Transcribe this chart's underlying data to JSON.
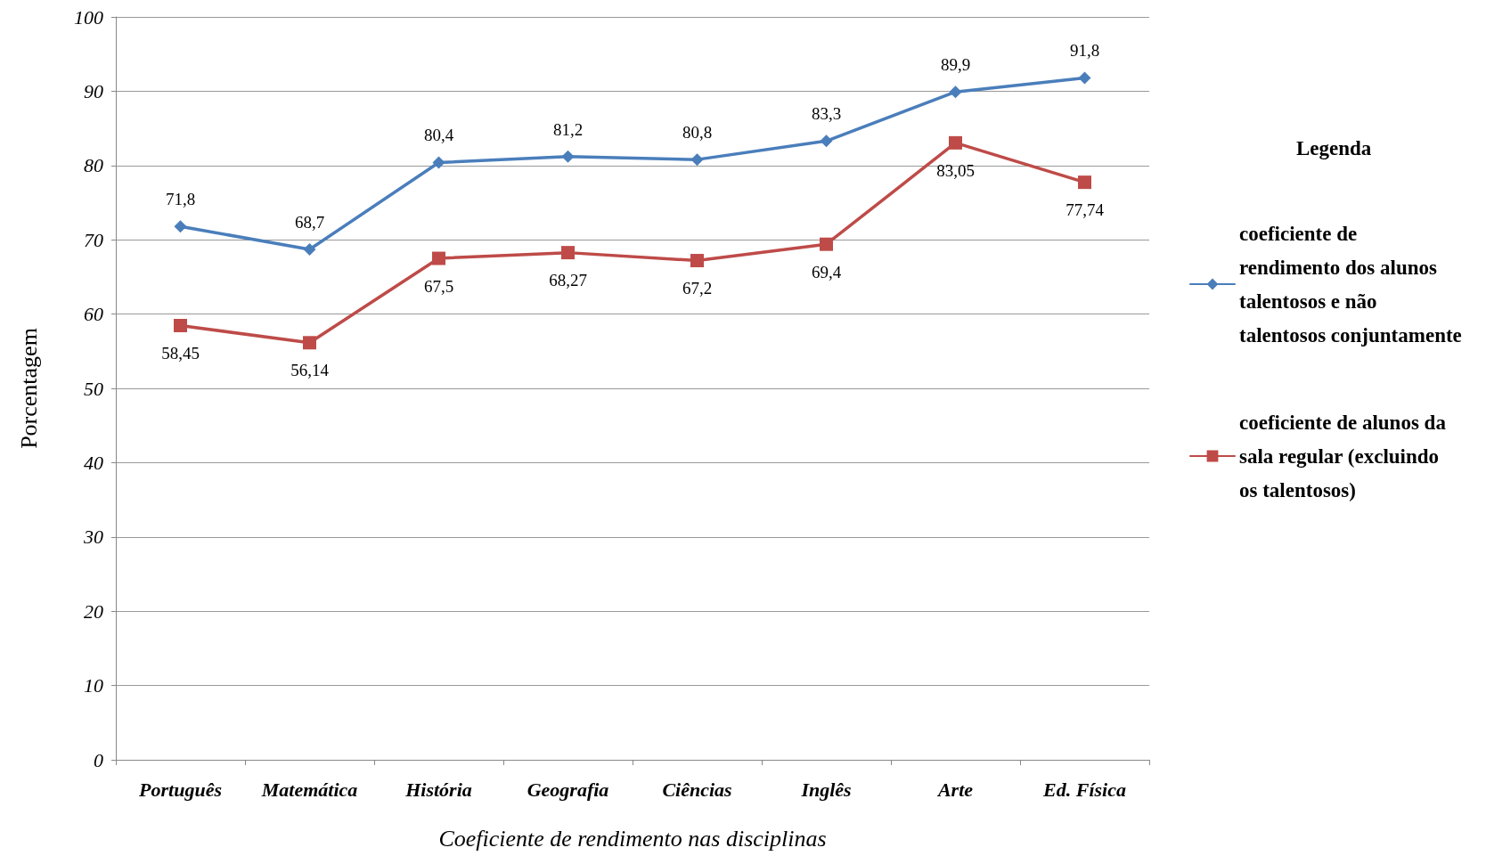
{
  "chart_data": {
    "type": "line",
    "xlabel": "Coeficiente de rendimento nas disciplinas",
    "ylabel": "Porcentagem",
    "legend_title": "Legenda",
    "categories": [
      "Português",
      "Matemática",
      "História",
      "Geografia",
      "Ciências",
      "Inglês",
      "Arte",
      "Ed. Física"
    ],
    "series": [
      {
        "name": "coeficiente de rendimento dos alunos talentosos e não talentosos conjuntamente",
        "color": "#4a7ebb",
        "marker": "diamond",
        "values": [
          71.8,
          68.7,
          80.4,
          81.2,
          80.8,
          83.3,
          89.9,
          91.8
        ],
        "value_labels": [
          "71,8",
          "68,7",
          "80,4",
          "81,2",
          "80,8",
          "83,3",
          "89,9",
          "91,8"
        ]
      },
      {
        "name": "coeficiente de alunos da sala regular (excluindo os talentosos)",
        "color": "#be4b48",
        "marker": "square",
        "values": [
          58.45,
          56.14,
          67.5,
          68.27,
          67.2,
          69.4,
          83.05,
          77.74
        ],
        "value_labels": [
          "58,45",
          "56,14",
          "67,5",
          "68,27",
          "67,2",
          "69,4",
          "83,05",
          "77,74"
        ]
      }
    ],
    "ylim": [
      0,
      100
    ],
    "yticks": [
      0,
      10,
      20,
      30,
      40,
      50,
      60,
      70,
      80,
      90,
      100
    ],
    "grid": "y",
    "legend": "right",
    "line_style": "solid"
  }
}
